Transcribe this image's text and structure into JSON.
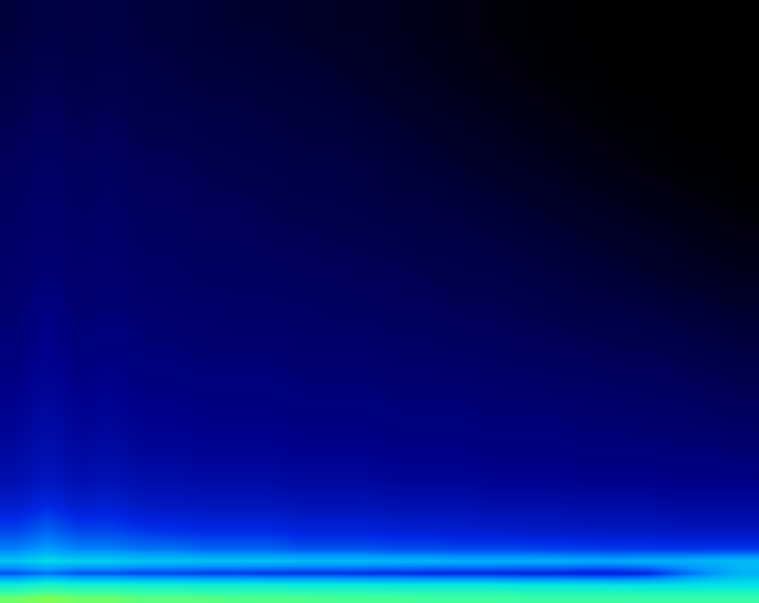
{
  "chart_data": {
    "type": "heatmap",
    "x": [
      0,
      1,
      2,
      3,
      4,
      5,
      6,
      7,
      8,
      9,
      10,
      11,
      12,
      13,
      14,
      15,
      16,
      17,
      18,
      19,
      20,
      21,
      22,
      23
    ],
    "y": [
      1,
      3,
      5,
      7,
      9,
      12,
      16,
      20,
      25,
      30,
      36,
      42,
      48,
      54,
      60,
      66,
      72,
      80,
      88,
      96
    ],
    "z": [
      [
        90,
        92,
        90,
        90,
        88,
        88,
        88,
        87,
        87,
        87,
        86,
        86,
        86,
        85,
        85,
        85,
        84,
        84,
        84,
        84,
        83,
        83,
        83,
        83
      ],
      [
        74,
        78,
        76,
        76,
        75,
        75,
        74,
        74,
        74,
        73,
        73,
        73,
        72,
        72,
        72,
        72,
        71,
        71,
        71,
        70,
        70,
        70,
        70,
        70
      ],
      [
        46,
        50,
        46,
        46,
        44,
        44,
        43,
        43,
        42,
        42,
        42,
        41,
        41,
        40,
        40,
        40,
        39,
        39,
        38,
        38,
        40,
        48,
        55,
        60
      ],
      [
        64,
        68,
        66,
        66,
        64,
        64,
        63,
        63,
        63,
        62,
        62,
        62,
        61,
        61,
        60,
        60,
        60,
        60,
        59,
        59,
        60,
        60,
        61,
        62
      ],
      [
        52,
        56,
        52,
        52,
        50,
        50,
        48,
        48,
        48,
        46,
        46,
        46,
        45,
        45,
        44,
        44,
        44,
        43,
        43,
        42,
        42,
        42,
        42,
        42
      ],
      [
        44,
        48,
        44,
        44,
        42,
        41,
        40,
        40,
        40,
        38,
        38,
        38,
        37,
        37,
        36,
        36,
        35,
        35,
        34,
        34,
        34,
        33,
        33,
        33
      ],
      [
        36,
        40,
        36,
        37,
        34,
        34,
        33,
        33,
        33,
        32,
        32,
        32,
        31,
        31,
        31,
        30,
        30,
        30,
        29,
        29,
        29,
        28,
        28,
        28
      ],
      [
        31,
        34,
        31,
        32,
        30,
        30,
        29,
        29,
        29,
        28,
        28,
        28,
        27,
        27,
        27,
        26,
        26,
        26,
        25,
        25,
        25,
        24,
        24,
        24
      ],
      [
        28,
        31,
        28,
        29,
        27,
        27,
        26,
        26,
        26,
        25,
        25,
        25,
        24,
        24,
        24,
        23,
        23,
        23,
        22,
        22,
        22,
        21,
        21,
        20
      ],
      [
        26,
        29,
        26,
        27,
        25,
        25,
        24,
        24,
        24,
        23,
        23,
        23,
        22,
        22,
        22,
        21,
        21,
        21,
        20,
        20,
        19,
        19,
        18,
        17
      ],
      [
        24,
        27,
        24,
        25,
        23,
        23,
        22,
        22,
        22,
        21,
        21,
        21,
        20,
        20,
        20,
        19,
        19,
        18,
        18,
        17,
        17,
        16,
        15,
        14
      ],
      [
        22,
        25,
        22,
        23,
        21,
        21,
        20,
        20,
        20,
        19,
        19,
        19,
        18,
        18,
        17,
        17,
        16,
        16,
        15,
        14,
        14,
        13,
        12,
        11
      ],
      [
        20,
        23,
        20,
        21,
        20,
        19,
        19,
        18,
        18,
        18,
        17,
        17,
        16,
        16,
        15,
        15,
        14,
        13,
        12,
        12,
        11,
        10,
        9,
        8
      ],
      [
        19,
        21,
        19,
        20,
        18,
        18,
        17,
        17,
        17,
        16,
        16,
        15,
        15,
        14,
        13,
        13,
        12,
        11,
        10,
        9,
        8,
        7,
        6,
        5
      ],
      [
        18,
        20,
        18,
        19,
        17,
        17,
        16,
        16,
        15,
        15,
        14,
        14,
        13,
        12,
        12,
        11,
        10,
        9,
        8,
        7,
        6,
        5,
        4,
        3
      ],
      [
        17,
        19,
        17,
        18,
        16,
        16,
        15,
        15,
        14,
        13,
        13,
        12,
        11,
        11,
        10,
        9,
        8,
        7,
        6,
        5,
        4,
        3,
        2,
        1
      ],
      [
        16,
        18,
        16,
        17,
        15,
        15,
        14,
        13,
        13,
        12,
        12,
        11,
        10,
        9,
        8,
        7,
        6,
        5,
        4,
        3,
        2,
        1,
        1,
        0
      ],
      [
        14,
        16,
        14,
        15,
        13,
        13,
        12,
        12,
        11,
        10,
        10,
        9,
        8,
        7,
        6,
        5,
        4,
        3,
        2,
        1,
        1,
        0,
        0,
        0
      ],
      [
        12,
        14,
        12,
        13,
        12,
        11,
        10,
        10,
        9,
        9,
        8,
        7,
        6,
        5,
        4,
        3,
        2,
        1,
        1,
        0,
        0,
        0,
        0,
        0
      ],
      [
        10,
        12,
        11,
        12,
        10,
        10,
        9,
        8,
        8,
        7,
        6,
        6,
        5,
        4,
        3,
        2,
        1,
        1,
        0,
        0,
        0,
        0,
        0,
        0
      ]
    ],
    "xlim": [
      -0.5,
      23.5
    ],
    "ylim": [
      0,
      100
    ],
    "zlim": [
      0,
      100
    ],
    "tick_labels": false
  }
}
